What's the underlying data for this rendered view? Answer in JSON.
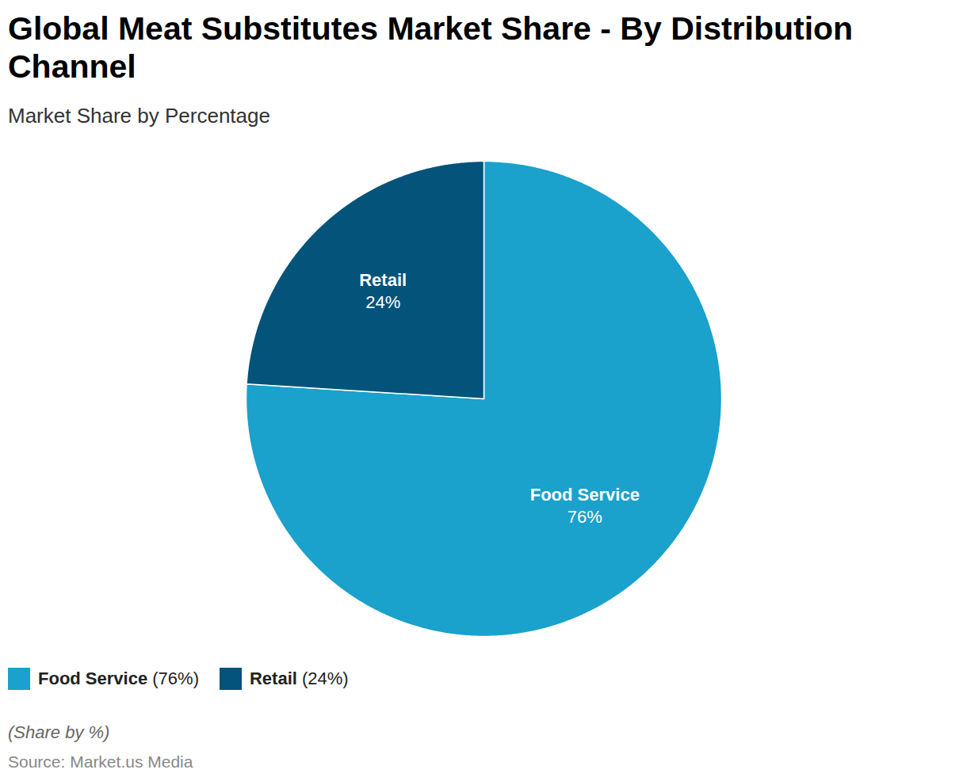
{
  "chart_data": {
    "type": "pie",
    "title": "Global Meat Substitutes Market Share - By Distribution Channel",
    "subtitle": "Market Share by Percentage",
    "categories": [
      "Food Service",
      "Retail"
    ],
    "values": [
      76,
      24
    ],
    "value_labels": [
      "76%",
      "24%"
    ],
    "colors": [
      "#1aa1cc",
      "#03537a"
    ],
    "data_labels": true,
    "legend": "bottom-left",
    "caption": "(Share by %)",
    "source": "Source: Market.us Media"
  }
}
